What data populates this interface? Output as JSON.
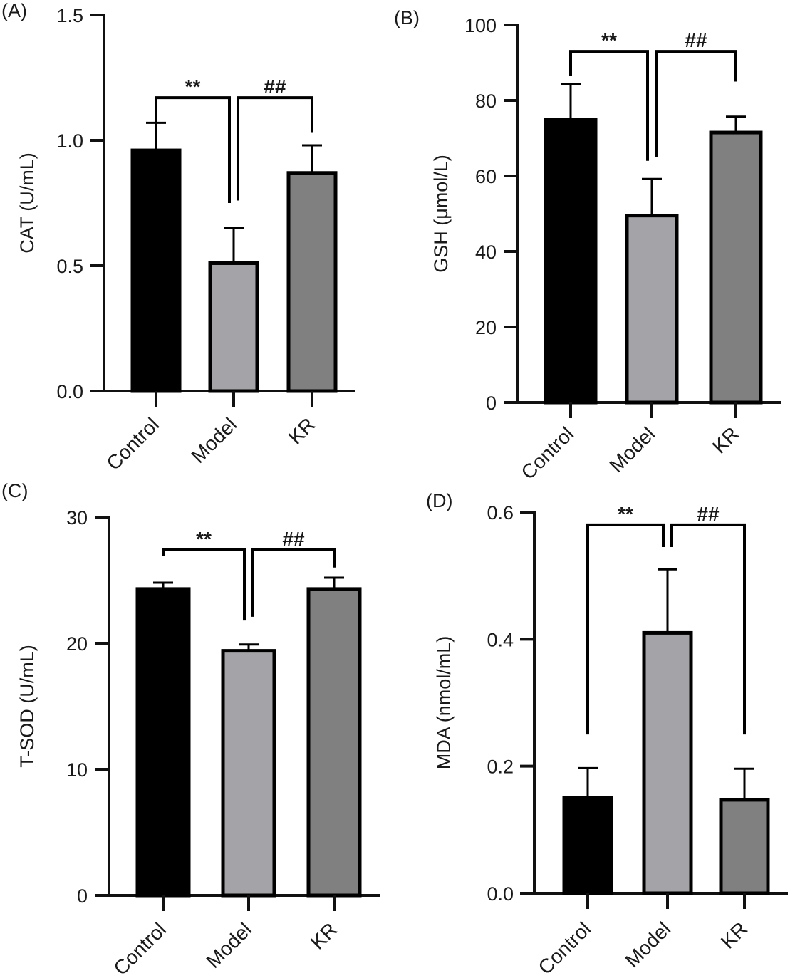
{
  "chart_data": [
    {
      "type": "bar",
      "panel_label": "(A)",
      "categories": [
        "Control",
        "Model",
        "KR"
      ],
      "values": [
        0.96,
        0.51,
        0.87
      ],
      "errors": [
        0.11,
        0.14,
        0.11
      ],
      "ylabel": "CAT (U/mL)",
      "ylim": [
        0,
        1.5
      ],
      "yticks": [
        0,
        0.5,
        1.0,
        1.5
      ],
      "ytick_labels": [
        "0.0",
        "0.5",
        "1.0",
        "1.5"
      ],
      "bar_colors": [
        "#000000",
        "#a3a3a8",
        "#808080"
      ],
      "significance": [
        {
          "from": 0,
          "to": 1,
          "label": "**",
          "top": 1.17,
          "left_end": 1.06,
          "right_end": 0.75
        },
        {
          "from": 1,
          "to": 2,
          "label": "##",
          "top": 1.17,
          "left_end": 0.76,
          "right_end": 1.03
        }
      ]
    },
    {
      "type": "bar",
      "panel_label": "(B)",
      "categories": [
        "Control",
        "Model",
        "KR"
      ],
      "values": [
        75,
        49.5,
        71.5
      ],
      "errors": [
        9.3,
        9.7,
        4.2
      ],
      "ylabel": "GSH (μmol/L)",
      "ylim": [
        0,
        100
      ],
      "yticks": [
        0,
        20,
        40,
        60,
        80,
        100
      ],
      "ytick_labels": [
        "0",
        "20",
        "40",
        "60",
        "80",
        "100"
      ],
      "bar_colors": [
        "#000000",
        "#a3a3a8",
        "#808080"
      ],
      "significance": [
        {
          "from": 0,
          "to": 1,
          "label": "**",
          "top": 93,
          "left_end": 86.5,
          "right_end": 64
        },
        {
          "from": 1,
          "to": 2,
          "label": "##",
          "top": 93,
          "left_end": 65,
          "right_end": 85
        }
      ]
    },
    {
      "type": "bar",
      "panel_label": "(C)",
      "categories": [
        "Control",
        "Model",
        "KR"
      ],
      "values": [
        24.3,
        19.4,
        24.3
      ],
      "errors": [
        0.5,
        0.5,
        0.9
      ],
      "ylabel": "T-SOD (U/mL)",
      "ylim": [
        0,
        30
      ],
      "yticks": [
        0,
        10,
        20,
        30
      ],
      "ytick_labels": [
        "0",
        "10",
        "20",
        "30"
      ],
      "bar_colors": [
        "#000000",
        "#a3a3a8",
        "#808080"
      ],
      "significance": [
        {
          "from": 0,
          "to": 1,
          "label": "**",
          "top": 27.4,
          "left_end": 26.9,
          "right_end": 21.8
        },
        {
          "from": 1,
          "to": 2,
          "label": "##",
          "top": 27.4,
          "left_end": 22.1,
          "right_end": 26.0
        }
      ]
    },
    {
      "type": "bar",
      "panel_label": "(D)",
      "categories": [
        "Control",
        "Model",
        "KR"
      ],
      "values": [
        0.15,
        0.41,
        0.147
      ],
      "errors": [
        0.047,
        0.1,
        0.049
      ],
      "ylabel": "MDA (nmol/mL)",
      "ylim": [
        0,
        0.6
      ],
      "yticks": [
        0,
        0.2,
        0.4,
        0.6
      ],
      "ytick_labels": [
        "0.0",
        "0.2",
        "0.4",
        "0.6"
      ],
      "bar_colors": [
        "#000000",
        "#a3a3a8",
        "#808080"
      ],
      "significance": [
        {
          "from": 0,
          "to": 1,
          "label": "**",
          "top": 0.58,
          "left_end": 0.25,
          "right_end": 0.545
        },
        {
          "from": 1,
          "to": 2,
          "label": "##",
          "top": 0.58,
          "left_end": 0.545,
          "right_end": 0.25
        }
      ]
    }
  ]
}
